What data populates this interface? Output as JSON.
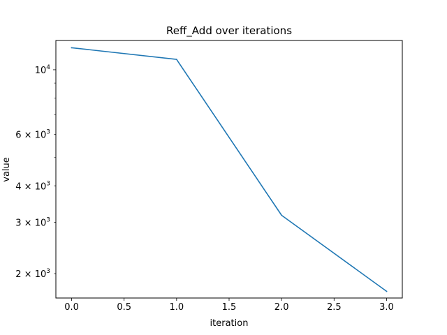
{
  "chart_data": {
    "type": "line",
    "title": "Reff_Add over iterations",
    "xlabel": "iteration",
    "ylabel": "value",
    "yscale": "log",
    "grid": false,
    "xlim": [
      -0.15,
      3.15
    ],
    "ylim": [
      1650,
      12600
    ],
    "x_ticks": [
      "0.0",
      "0.5",
      "1.0",
      "1.5",
      "2.0",
      "2.5",
      "3.0"
    ],
    "y_tick_labels": [
      {
        "value": 10000,
        "base": "10",
        "exp": "4"
      },
      {
        "value": 6000,
        "base": "6 × 10",
        "exp": "3"
      },
      {
        "value": 4000,
        "base": "4 × 10",
        "exp": "3"
      },
      {
        "value": 3000,
        "base": "3 × 10",
        "exp": "3"
      },
      {
        "value": 2000,
        "base": "2 × 10",
        "exp": "3"
      }
    ],
    "color": "#1f77b4",
    "series": [
      {
        "x": [
          0,
          1,
          2,
          3
        ],
        "values": [
          11900,
          10850,
          3170,
          1740
        ]
      }
    ]
  }
}
